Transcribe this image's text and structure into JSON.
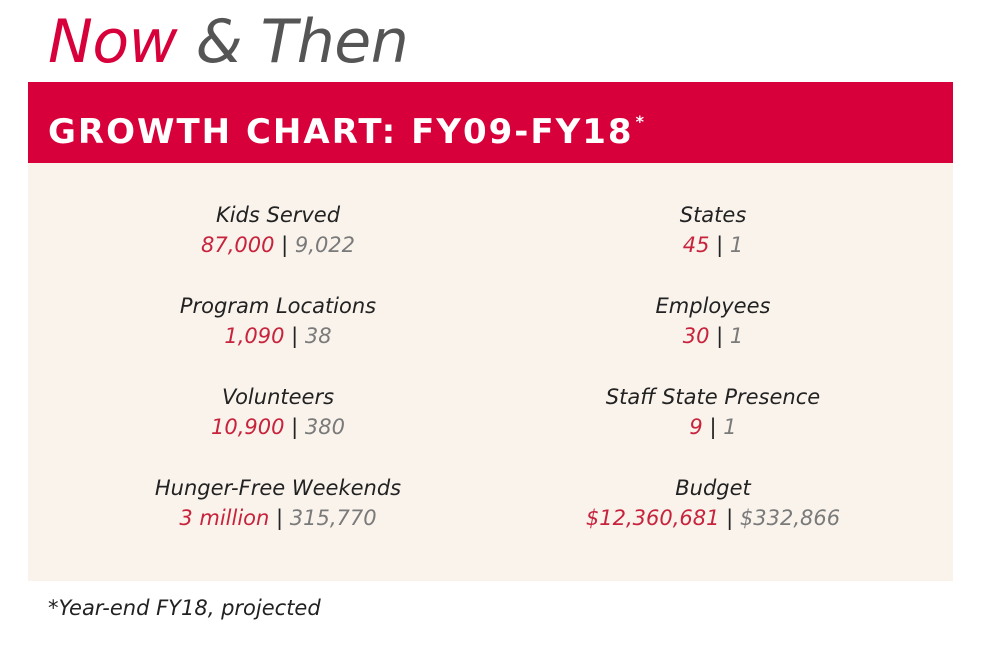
{
  "header": {
    "now_word": "Now",
    "rest": "& Then"
  },
  "banner": {
    "title": "GROWTH CHART: FY09-FY18",
    "asterisk": "*"
  },
  "separator": "|",
  "stats": {
    "left": [
      {
        "label": "Kids Served",
        "now": "87,000",
        "then": "9,022"
      },
      {
        "label": "Program Locations",
        "now": "1,090",
        "then": "38"
      },
      {
        "label": "Volunteers",
        "now": "10,900",
        "then": "380"
      },
      {
        "label": "Hunger-Free Weekends",
        "now": "3 million",
        "then": "315,770"
      }
    ],
    "right": [
      {
        "label": "States",
        "now": "45",
        "then": "1"
      },
      {
        "label": "Employees",
        "now": "30",
        "then": "1"
      },
      {
        "label": "Staff State Presence",
        "now": "9",
        "then": "1"
      },
      {
        "label": "Budget",
        "now": "$12,360,681",
        "then": "$332,866"
      }
    ]
  },
  "footnote": "*Year-end FY18, projected",
  "colors": {
    "accent": "#d7003a",
    "panel": "#f9f3ec",
    "now_value": "#c8233c",
    "then_value": "#7a7a7a"
  }
}
